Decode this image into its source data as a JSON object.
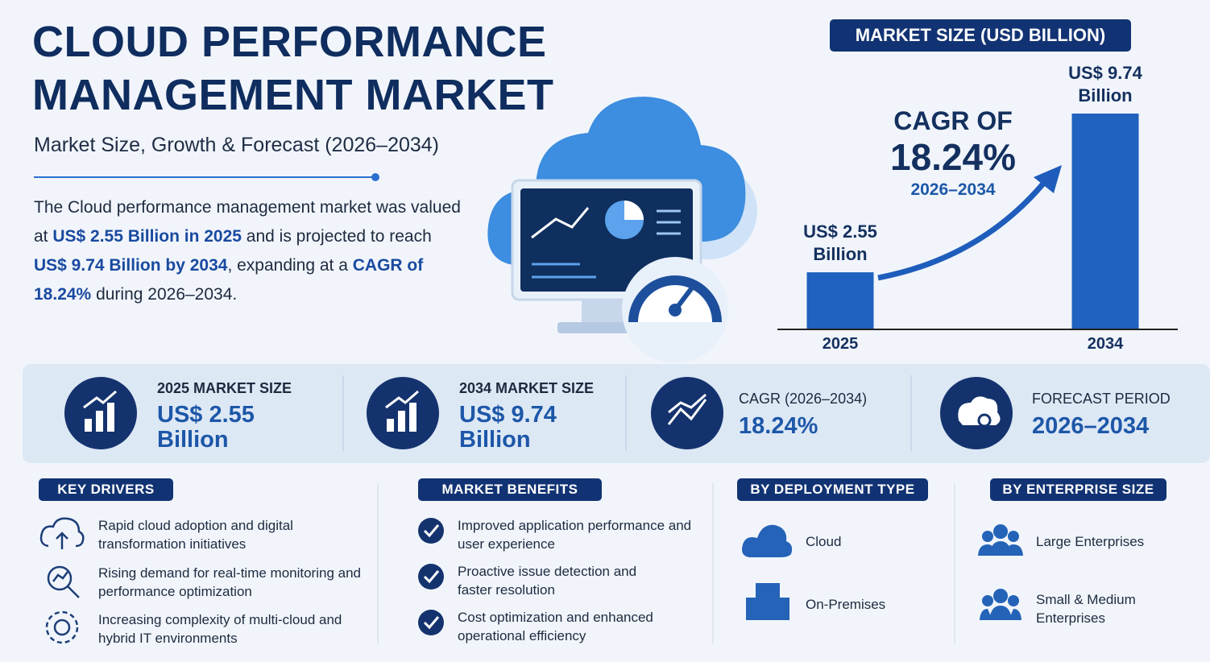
{
  "header": {
    "title_line1": "CLOUD PERFORMANCE",
    "title_line2": "MANAGEMENT MARKET",
    "subtitle": "Market Size, Growth & Forecast (2026–2034)"
  },
  "summary": [
    "The Cloud performance management market was valued at ",
    "US$ 2.55 Billion in 2025",
    " and is projected to reach ",
    "US$ 9.74 Billion by 2034",
    ", expanding at a ",
    "CAGR of 18.24%",
    " during 2026–2034."
  ],
  "chart_data": {
    "type": "bar",
    "title": "MARKET SIZE (USD BILLION)",
    "categories": [
      "2025",
      "2034"
    ],
    "values": [
      2.55,
      9.74
    ],
    "value_labels": [
      "US$ 2.55 Billion",
      "US$ 9.74 Billion"
    ],
    "color": "#1f62bf",
    "annotation": {
      "heading": "CAGR OF",
      "value": "18.24%",
      "period": "2026–2034"
    }
  },
  "stats": [
    {
      "label": "2025 MARKET SIZE",
      "value": "US$ 2.55 Billion"
    },
    {
      "label": "2034 MARKET SIZE",
      "value": "US$ 9.74 Billion"
    },
    {
      "label": "CAGR (2026–2034)",
      "value": "18.24%"
    },
    {
      "label": "FORECAST PERIOD",
      "value": "2026–2034"
    }
  ],
  "key_drivers": {
    "title": "KEY DRIVERS",
    "items": [
      "Rapid cloud adoption and digital transformation initiatives",
      "Rising demand for real-time monitoring and performance optimization",
      "Increasing complexity of multi-cloud and hybrid IT environments"
    ]
  },
  "market_benefits": {
    "title": "MARKET BENEFITS",
    "items": [
      "Improved application performance and user experience",
      "Proactive issue detection and faster resolution",
      "Cost optimization and enhanced operational efficiency"
    ]
  },
  "deployment_type": {
    "title": "BY DEPLOYMENT TYPE",
    "items": [
      "Cloud",
      "On-Premises"
    ]
  },
  "enterprise_size": {
    "title": "BY ENTERPRISE SIZE",
    "items": [
      "Large Enterprises",
      "Small & Medium Enterprises"
    ]
  }
}
